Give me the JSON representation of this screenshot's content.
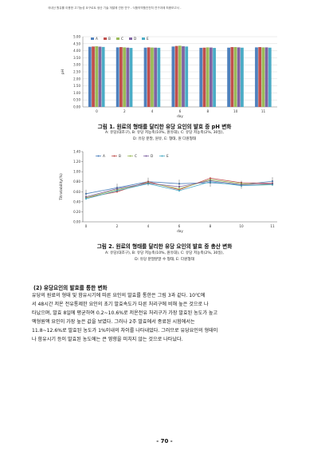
{
  "header": {
    "text": "국내산 원유를 이용한 고기능성 요구르트 생산 기술 개발에 관한 연구 - 식품의약품안전처 연구과제 최종보고서 -"
  },
  "colors": {
    "A": "#4f81bd",
    "B": "#c0504d",
    "C": "#9bbb59",
    "D": "#8064a2",
    "E": "#4bacc6"
  },
  "figure1": {
    "caption": "그림 1. 원료의 형태를 달리한 유당 요인의 발효 중 pH 변화",
    "notes": [
      "A: 유당(대조구), B: 유당 저농축(10%, 원유대), C: 유당 저농축(2%, 30일),",
      "D: 유당 분말, 원유, E: 형태, 원 다원형태"
    ],
    "chart_data": {
      "type": "bar",
      "categories": [
        "0",
        "2",
        "4",
        "6",
        "8",
        "10",
        "11"
      ],
      "series": [
        {
          "name": "A",
          "values": [
            4.28,
            4.24,
            4.22,
            4.3,
            4.21,
            4.22,
            4.24
          ]
        },
        {
          "name": "B",
          "values": [
            4.3,
            4.26,
            4.24,
            4.34,
            4.22,
            4.26,
            4.26
          ]
        },
        {
          "name": "C",
          "values": [
            4.32,
            4.24,
            4.23,
            4.36,
            4.24,
            4.26,
            4.24
          ]
        },
        {
          "name": "D",
          "values": [
            4.29,
            4.22,
            4.22,
            4.32,
            4.23,
            4.24,
            4.24
          ]
        },
        {
          "name": "E",
          "values": [
            4.27,
            4.2,
            4.21,
            4.3,
            4.2,
            4.22,
            4.22
          ]
        }
      ],
      "yticks": [
        "0.00",
        "0.50",
        "1.00",
        "1.50",
        "2.00",
        "2.50",
        "3.00",
        "3.50",
        "4.00",
        "4.50",
        "5.00"
      ],
      "ylim": [
        0,
        5
      ],
      "xlabel": "day",
      "ylabel": "pH",
      "grid": true,
      "legend": "top-left"
    }
  },
  "figure2": {
    "caption": "그림 2. 원료의 형태를 달리한 유당 요인의 발효 중 총산 변화",
    "notes": [
      "A: 유당(대조구), B: 유당 저농축(10%, 원유대), C: 유당 저농축(2%, 30일),",
      "D: 유당 분말분말 수 형태, E: 다원형태"
    ],
    "chart_data": {
      "type": "line",
      "x": [
        "0",
        "2",
        "4",
        "6",
        "8",
        "10",
        "11"
      ],
      "series": [
        {
          "name": "A",
          "values": [
            0.56,
            0.68,
            0.8,
            0.76,
            0.78,
            0.74,
            0.81
          ]
        },
        {
          "name": "B",
          "values": [
            0.48,
            0.6,
            0.8,
            0.64,
            0.87,
            0.78,
            0.77
          ]
        },
        {
          "name": "C",
          "values": [
            0.48,
            0.64,
            0.78,
            0.66,
            0.84,
            0.76,
            0.74
          ]
        },
        {
          "name": "D",
          "values": [
            0.5,
            0.66,
            0.77,
            0.7,
            0.82,
            0.74,
            0.76
          ]
        },
        {
          "name": "E",
          "values": [
            0.46,
            0.62,
            0.76,
            0.62,
            0.8,
            0.72,
            0.74
          ]
        }
      ],
      "yticks": [
        "0.00",
        "0.20",
        "0.40",
        "0.60",
        "0.80",
        "1.00",
        "1.20",
        "1.40"
      ],
      "ylim": [
        0,
        1.4
      ],
      "xlabel": "day",
      "ylabel": "Titratability(%)",
      "grid": false,
      "legend": "top-left"
    }
  },
  "section_title": "(2) 유당요인의 발효를 통한 변화",
  "paragraph": [
    "유당의 원료의 형태 및 함유시기에 따른 요인의 발효를 통한은 그림 3과 같다. 10℃에",
    "서 48시간 저온 전유통제한 요인의 초기 발효속도가 다른 처리구에 비해 높은 것으로 나",
    "타났으며, 발효 8일에 평균하여 0.2~10.6%로 저온전유 처리구가 가장 발효된 농도가 높고",
    "액형원액 요인이 가장 높은 값을 보였다. 그러나 2주 발효에서 종료된 시험에서는",
    "11.8~12.6%로 발효된 농도가 1%이내의 차이를 나타내었다. 그러므로 유당요인의 형태이",
    "나 함유시기 등이 발효된 농도에는 큰 영향을 미치지 않는 것으로 나타났다."
  ],
  "page_number": "- 70 -"
}
